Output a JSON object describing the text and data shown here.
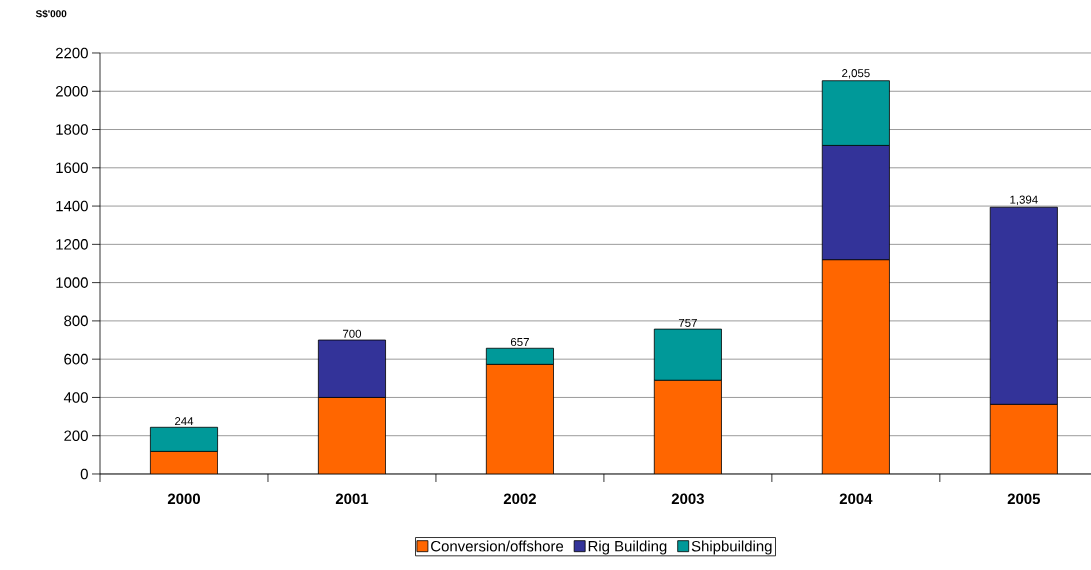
{
  "chart_data": {
    "type": "bar",
    "stacked": true,
    "ylabel": "S$'000",
    "categories": [
      "2000",
      "2001",
      "2002",
      "2003",
      "2004",
      "2005"
    ],
    "series": [
      {
        "name": "Conversion/offshore",
        "color": "#ff6600",
        "values": [
          118,
          400,
          573,
          490,
          1120,
          364
        ]
      },
      {
        "name": "Rig Building",
        "color": "#333399",
        "values": [
          null,
          300,
          null,
          null,
          597,
          1030
        ]
      },
      {
        "name": "Shipbuilding",
        "color": "#009999",
        "values": [
          126,
          null,
          84,
          267,
          338,
          null
        ]
      }
    ],
    "totals": [
      "244",
      "700",
      "657",
      "757",
      "2,055",
      "1,394"
    ],
    "ylim": [
      0,
      2200
    ],
    "yticks": [
      0,
      200,
      400,
      600,
      800,
      1000,
      1200,
      1400,
      1600,
      1800,
      2000,
      2200
    ],
    "grid": "y",
    "legend": "bottom"
  }
}
